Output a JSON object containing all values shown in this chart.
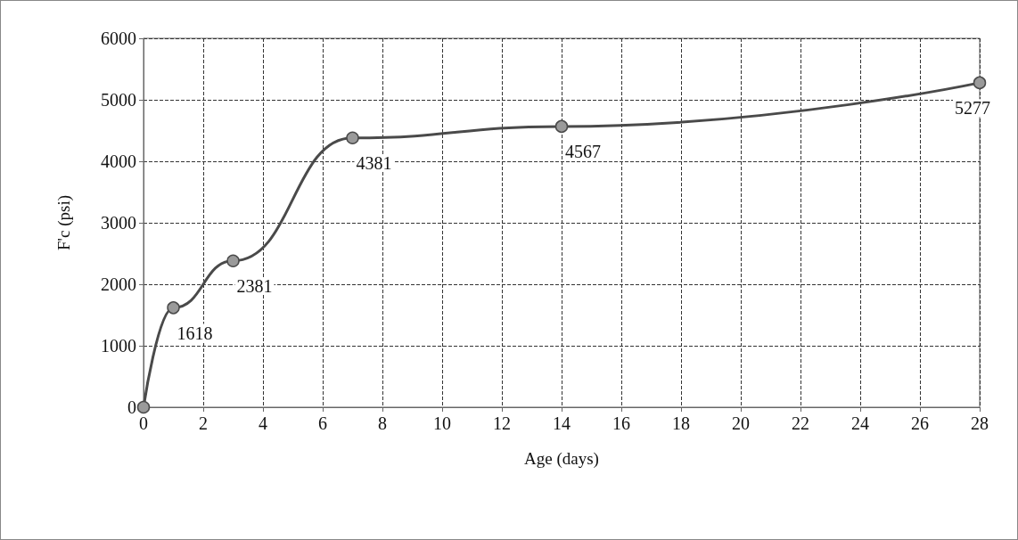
{
  "chart_data": {
    "type": "line",
    "xlabel": "Age (days)",
    "ylabel": "F'c (psi)",
    "x": [
      0,
      1,
      3,
      7,
      14,
      28
    ],
    "series": [
      {
        "color": "#4a4a4a",
        "values": [
          0,
          1618,
          2381,
          4381,
          4567,
          5277
        ],
        "value_labels": [
          null,
          "1618",
          "2381",
          "4381",
          "4567",
          "5277"
        ]
      }
    ],
    "xlim": [
      0,
      28
    ],
    "xticks": [
      0,
      2,
      4,
      6,
      8,
      10,
      12,
      14,
      16,
      18,
      20,
      22,
      24,
      26,
      28
    ],
    "ylim": [
      0,
      6000
    ],
    "yticks": [
      0,
      1000,
      2000,
      3000,
      4000,
      5000,
      6000
    ],
    "grid": true,
    "marker": "circle",
    "line_style": "solid"
  }
}
